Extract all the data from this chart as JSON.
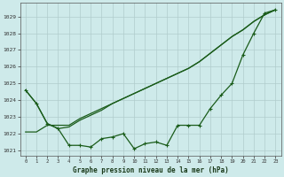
{
  "xlabel": "Graphe pression niveau de la mer (hPa)",
  "bg_color": "#ceeaea",
  "grid_color": "#b0cccc",
  "line_color": "#1a5c1a",
  "x_values": [
    0,
    1,
    2,
    3,
    4,
    5,
    6,
    7,
    8,
    9,
    10,
    11,
    12,
    13,
    14,
    15,
    16,
    17,
    18,
    19,
    20,
    21,
    22,
    23
  ],
  "line1": [
    1024.6,
    1023.8,
    1022.6,
    1022.3,
    1022.4,
    1022.8,
    1023.1,
    1023.4,
    1023.8,
    1024.1,
    1024.4,
    1024.7,
    1025.0,
    1025.3,
    1025.6,
    1025.9,
    1026.3,
    1026.8,
    1027.3,
    1027.8,
    1028.2,
    1028.7,
    1029.1,
    1029.4
  ],
  "line2": [
    1024.6,
    1023.8,
    1022.6,
    1022.3,
    1021.3,
    1021.3,
    1021.2,
    1021.7,
    1021.8,
    1022.0,
    1021.1,
    1021.4,
    1021.5,
    1021.3,
    1022.5,
    1022.5,
    1022.5,
    1023.5,
    1024.3,
    1025.0,
    1026.7,
    1028.0,
    1029.2,
    1029.4
  ],
  "line3": [
    1022.1,
    1022.1,
    1022.5,
    1022.5,
    1022.5,
    1022.9,
    1023.2,
    1023.5,
    1023.8,
    1024.1,
    1024.4,
    1024.7,
    1025.0,
    1025.3,
    1025.6,
    1025.9,
    1026.3,
    1026.8,
    1027.3,
    1027.8,
    1028.2,
    1028.7,
    1029.1,
    1029.4
  ],
  "ylim": [
    1020.7,
    1029.8
  ],
  "yticks": [
    1021,
    1022,
    1023,
    1024,
    1025,
    1026,
    1027,
    1028,
    1029
  ]
}
